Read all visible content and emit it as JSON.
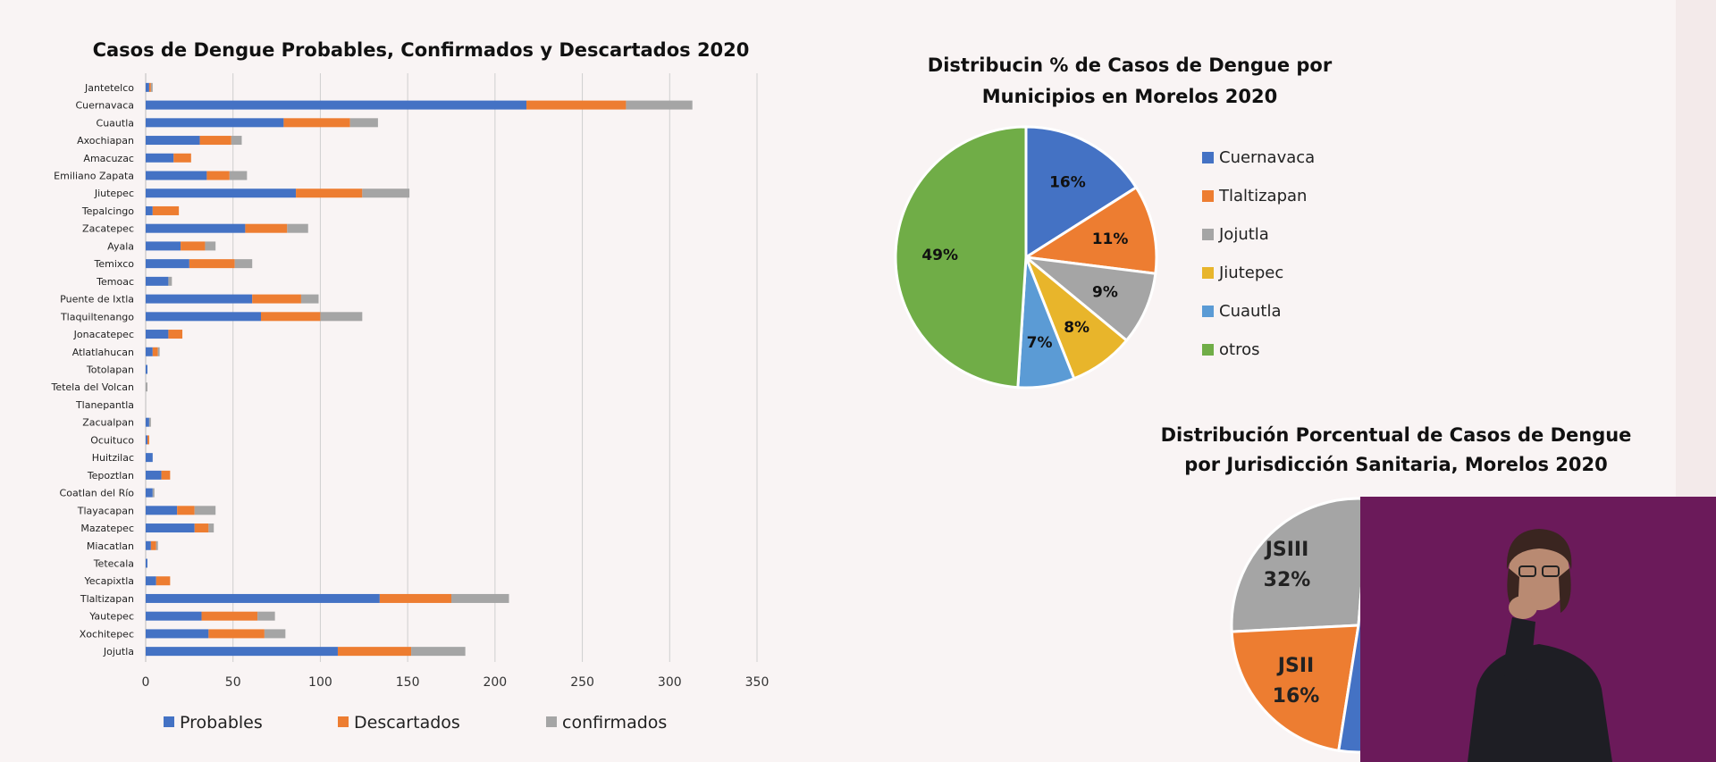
{
  "chart_data": [
    {
      "type": "bar",
      "orientation": "horizontal",
      "stacked": true,
      "title": "Casos de Dengue Probables, Confirmados y Descartados 2020",
      "categories": [
        "Jantetelco",
        "Cuernavaca",
        "Cuautla",
        "Axochiapan",
        "Amacuzac",
        "Emiliano Zapata",
        "Jiutepec",
        "Tepalcingo",
        "Zacatepec",
        "Ayala",
        "Temixco",
        "Temoac",
        "Puente de Ixtla",
        "Tlaquiltenango",
        "Jonacatepec",
        "Atlatlahucan",
        "Totolapan",
        "Tetela del Volcan",
        "Tlanepantla",
        "Zacualpan",
        "Ocuituco",
        "Huitzilac",
        "Tepoztlan",
        "Coatlan del Río",
        "Tlayacapan",
        "Mazatepec",
        "Miacatlan",
        "Tetecala",
        "Yecapixtla",
        "Tlaltizapan",
        "Yautepec",
        "Xochitepec",
        "Jojutla"
      ],
      "series": [
        {
          "name": "Probables",
          "color": "#4472c4",
          "values": [
            2,
            218,
            79,
            31,
            16,
            35,
            86,
            4,
            57,
            20,
            25,
            13,
            61,
            66,
            13,
            4,
            1,
            0,
            0,
            2,
            1,
            4,
            9,
            4,
            18,
            28,
            3,
            1,
            6,
            134,
            32,
            36,
            110
          ]
        },
        {
          "name": "Descartados",
          "color": "#ed7d31",
          "values": [
            1,
            57,
            38,
            18,
            10,
            13,
            38,
            15,
            24,
            14,
            26,
            0,
            28,
            34,
            8,
            3,
            0,
            0,
            0,
            0,
            1,
            0,
            5,
            0,
            10,
            8,
            3,
            0,
            8,
            41,
            32,
            32,
            42
          ]
        },
        {
          "name": "confirmados",
          "color": "#a5a5a5",
          "values": [
            1,
            38,
            16,
            6,
            0,
            10,
            27,
            0,
            12,
            6,
            10,
            2,
            10,
            24,
            0,
            1,
            0,
            1,
            0,
            1,
            0,
            0,
            0,
            1,
            12,
            3,
            1,
            0,
            0,
            33,
            10,
            12,
            31
          ]
        }
      ],
      "xticks": [
        "0",
        "50",
        "100",
        "150",
        "200",
        "250",
        "300",
        "350"
      ],
      "xlim": [
        0,
        350
      ],
      "grid": true,
      "legend_position": "bottom"
    },
    {
      "type": "pie",
      "title_lines": [
        "Distribucin % de Casos de Dengue por",
        "Municipios en Morelos 2020"
      ],
      "labels": [
        "Cuernavaca",
        "Tlaltizapan",
        "Jojutla",
        "Jiutepec",
        "Cuautla",
        "otros"
      ],
      "values": [
        16,
        11,
        9,
        8,
        7,
        49
      ],
      "slice_labels": [
        "16%",
        "11%",
        "9%",
        "8%",
        "7%",
        "49%"
      ],
      "colors": [
        "#4472c4",
        "#ed7d31",
        "#a5a5a5",
        "#e8b52b",
        "#5b9bd5",
        "#70ad47"
      ],
      "legend_position": "right"
    },
    {
      "type": "pie",
      "title_lines": [
        "Distribución Porcentual de Casos de Dengue",
        "por Jurisdicción Sanitaria, Morelos 2020"
      ],
      "labels": [
        "JSIII",
        "JSII"
      ],
      "values": [
        32,
        16
      ],
      "slice_labels": [
        "32%",
        "16%"
      ],
      "colors": [
        "#a5a5a5",
        "#ed7d31",
        "#4472c4"
      ]
    }
  ]
}
